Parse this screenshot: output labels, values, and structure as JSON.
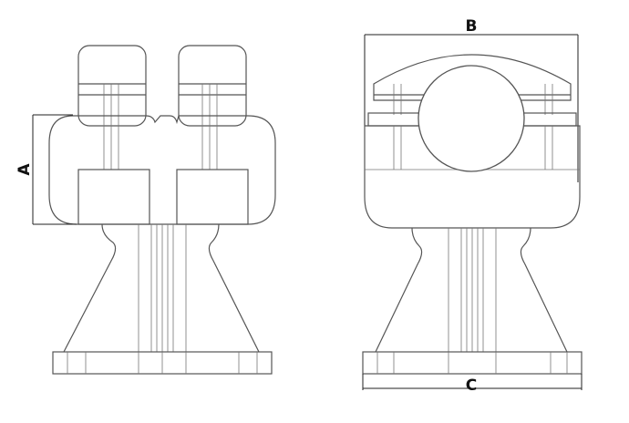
{
  "labels": {
    "a": "A",
    "b": "B",
    "c": "C"
  }
}
